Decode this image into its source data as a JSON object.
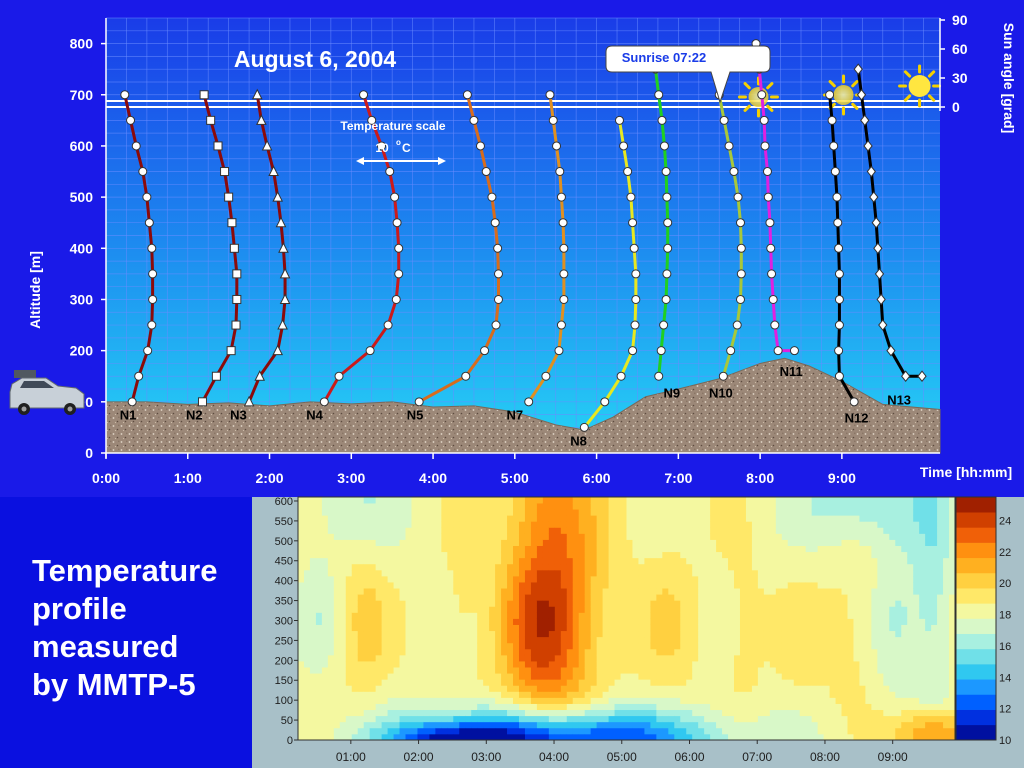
{
  "slide": {
    "caption_lines": [
      "Temperature",
      "profile",
      "measured",
      "by MMTP-5"
    ],
    "colors": {
      "background": "#0a10e0",
      "ground": "#a08a78",
      "sun": "#ffe640"
    }
  },
  "chart_data": [
    {
      "type": "line",
      "title": "August 6, 2004",
      "xlabel": "Time [hh:mm]",
      "ylabel": "Altitude [m]",
      "y2label": "Sun angle [grad]",
      "xlim": [
        0,
        10.2
      ],
      "ylim": [
        0,
        850
      ],
      "y2lim": [
        0,
        90
      ],
      "x_ticks": [
        "0:00",
        "1:00",
        "2:00",
        "3:00",
        "4:00",
        "5:00",
        "6:00",
        "7:00",
        "8:00",
        "9:00"
      ],
      "y_ticks": [
        "0",
        "100",
        "200",
        "300",
        "400",
        "500",
        "600",
        "700",
        "800"
      ],
      "y2_ticks": [
        "0",
        "30",
        "60",
        "90"
      ],
      "grid": true,
      "annotations": {
        "sunrise": "Sunrise 07:22",
        "temperature_scale_line1": "Temperature scale",
        "temperature_scale_value": "10",
        "temperature_scale_unit": "C"
      },
      "sun_positions_hours": [
        7.98,
        9.02,
        9.95
      ],
      "ground_profile": [
        [
          0.0,
          100
        ],
        [
          0.5,
          100
        ],
        [
          1.0,
          95
        ],
        [
          1.5,
          98
        ],
        [
          2.0,
          92
        ],
        [
          2.5,
          100
        ],
        [
          3.0,
          96
        ],
        [
          3.5,
          100
        ],
        [
          4.0,
          90
        ],
        [
          4.5,
          92
        ],
        [
          5.0,
          80
        ],
        [
          5.5,
          55
        ],
        [
          5.85,
          45
        ],
        [
          6.2,
          70
        ],
        [
          6.6,
          110
        ],
        [
          7.0,
          125
        ],
        [
          7.5,
          145
        ],
        [
          8.0,
          175
        ],
        [
          8.3,
          185
        ],
        [
          8.6,
          170
        ],
        [
          9.0,
          140
        ],
        [
          9.5,
          95
        ],
        [
          10.2,
          85
        ]
      ],
      "series": [
        {
          "name": "N1",
          "color": "#8b0a0a",
          "marker": "circle",
          "label_pos": [
            0.27,
            65
          ],
          "points": [
            [
              0.23,
              700
            ],
            [
              0.3,
              650
            ],
            [
              0.37,
              600
            ],
            [
              0.45,
              550
            ],
            [
              0.5,
              500
            ],
            [
              0.53,
              450
            ],
            [
              0.56,
              400
            ],
            [
              0.57,
              350
            ],
            [
              0.57,
              300
            ],
            [
              0.56,
              250
            ],
            [
              0.51,
              200
            ],
            [
              0.4,
              150
            ],
            [
              0.32,
              100
            ]
          ]
        },
        {
          "name": "N2",
          "color": "#8b0a0a",
          "marker": "square",
          "label_pos": [
            1.08,
            65
          ],
          "points": [
            [
              1.2,
              700
            ],
            [
              1.28,
              650
            ],
            [
              1.37,
              600
            ],
            [
              1.45,
              550
            ],
            [
              1.5,
              500
            ],
            [
              1.54,
              450
            ],
            [
              1.57,
              400
            ],
            [
              1.6,
              350
            ],
            [
              1.6,
              300
            ],
            [
              1.59,
              250
            ],
            [
              1.53,
              200
            ],
            [
              1.35,
              150
            ],
            [
              1.18,
              100
            ]
          ]
        },
        {
          "name": "N3",
          "color": "#8b0a0a",
          "marker": "triangle",
          "label_pos": [
            1.62,
            65
          ],
          "points": [
            [
              1.85,
              700
            ],
            [
              1.9,
              650
            ],
            [
              1.97,
              600
            ],
            [
              2.05,
              550
            ],
            [
              2.1,
              500
            ],
            [
              2.14,
              450
            ],
            [
              2.17,
              400
            ],
            [
              2.19,
              350
            ],
            [
              2.19,
              300
            ],
            [
              2.16,
              250
            ],
            [
              2.1,
              200
            ],
            [
              1.88,
              150
            ],
            [
              1.75,
              100
            ]
          ]
        },
        {
          "name": "N4",
          "color": "#cc1a1a",
          "marker": "circle",
          "label_pos": [
            2.55,
            65
          ],
          "points": [
            [
              3.15,
              700
            ],
            [
              3.25,
              650
            ],
            [
              3.37,
              600
            ],
            [
              3.47,
              550
            ],
            [
              3.53,
              500
            ],
            [
              3.56,
              450
            ],
            [
              3.58,
              400
            ],
            [
              3.58,
              350
            ],
            [
              3.55,
              300
            ],
            [
              3.45,
              250
            ],
            [
              3.23,
              200
            ],
            [
              2.85,
              150
            ],
            [
              2.67,
              100
            ]
          ]
        },
        {
          "name": "N5",
          "color": "#d86c1c",
          "marker": "circle",
          "label_pos": [
            3.78,
            65
          ],
          "points": [
            [
              4.42,
              700
            ],
            [
              4.5,
              650
            ],
            [
              4.58,
              600
            ],
            [
              4.65,
              550
            ],
            [
              4.72,
              500
            ],
            [
              4.76,
              450
            ],
            [
              4.79,
              400
            ],
            [
              4.8,
              350
            ],
            [
              4.8,
              300
            ],
            [
              4.77,
              250
            ],
            [
              4.63,
              200
            ],
            [
              4.4,
              150
            ],
            [
              3.83,
              100
            ]
          ]
        },
        {
          "name": "N7",
          "color": "#e09020",
          "marker": "circle",
          "label_pos": [
            5.0,
            65
          ],
          "points": [
            [
              5.43,
              700
            ],
            [
              5.47,
              650
            ],
            [
              5.51,
              600
            ],
            [
              5.55,
              550
            ],
            [
              5.57,
              500
            ],
            [
              5.59,
              450
            ],
            [
              5.6,
              400
            ],
            [
              5.6,
              350
            ],
            [
              5.6,
              300
            ],
            [
              5.57,
              250
            ],
            [
              5.54,
              200
            ],
            [
              5.38,
              150
            ],
            [
              5.17,
              100
            ]
          ]
        },
        {
          "name": "N8",
          "color": "#e8e820",
          "marker": "circle",
          "label_pos": [
            5.78,
            15
          ],
          "points": [
            [
              6.28,
              650
            ],
            [
              6.33,
              600
            ],
            [
              6.38,
              550
            ],
            [
              6.42,
              500
            ],
            [
              6.44,
              450
            ],
            [
              6.46,
              400
            ],
            [
              6.48,
              350
            ],
            [
              6.48,
              300
            ],
            [
              6.47,
              250
            ],
            [
              6.44,
              200
            ],
            [
              6.3,
              150
            ],
            [
              6.1,
              100
            ],
            [
              5.85,
              50
            ]
          ]
        },
        {
          "name": "N9",
          "color": "#20d020",
          "marker": "circle",
          "label_pos": [
            6.92,
            108
          ],
          "points": [
            [
              6.72,
              750
            ],
            [
              6.76,
              700
            ],
            [
              6.8,
              650
            ],
            [
              6.83,
              600
            ],
            [
              6.85,
              550
            ],
            [
              6.86,
              500
            ],
            [
              6.87,
              450
            ],
            [
              6.87,
              400
            ],
            [
              6.86,
              350
            ],
            [
              6.85,
              300
            ],
            [
              6.82,
              250
            ],
            [
              6.79,
              200
            ],
            [
              6.76,
              150
            ]
          ]
        },
        {
          "name": "N10",
          "color": "#a8c83a",
          "marker": "circle",
          "label_pos": [
            7.52,
            108
          ],
          "points": [
            [
              7.45,
              750
            ],
            [
              7.5,
              700
            ],
            [
              7.56,
              650
            ],
            [
              7.62,
              600
            ],
            [
              7.68,
              550
            ],
            [
              7.73,
              500
            ],
            [
              7.76,
              450
            ],
            [
              7.77,
              400
            ],
            [
              7.77,
              350
            ],
            [
              7.76,
              300
            ],
            [
              7.72,
              250
            ],
            [
              7.64,
              200
            ],
            [
              7.55,
              150
            ]
          ]
        },
        {
          "name": "N11",
          "color": "#e020e0",
          "marker": "circle",
          "label_pos": [
            8.38,
            150
          ],
          "points": [
            [
              7.95,
              800
            ],
            [
              7.99,
              750
            ],
            [
              8.02,
              700
            ],
            [
              8.05,
              650
            ],
            [
              8.06,
              600
            ],
            [
              8.09,
              550
            ],
            [
              8.1,
              500
            ],
            [
              8.12,
              450
            ],
            [
              8.13,
              400
            ],
            [
              8.14,
              350
            ],
            [
              8.16,
              300
            ],
            [
              8.18,
              250
            ],
            [
              8.22,
              200
            ],
            [
              8.42,
              200
            ]
          ]
        },
        {
          "name": "N12",
          "color": "#000000",
          "marker": "circle",
          "label_pos": [
            9.18,
            60
          ],
          "points": [
            [
              8.85,
              700
            ],
            [
              8.88,
              650
            ],
            [
              8.9,
              600
            ],
            [
              8.92,
              550
            ],
            [
              8.94,
              500
            ],
            [
              8.95,
              450
            ],
            [
              8.96,
              400
            ],
            [
              8.97,
              350
            ],
            [
              8.97,
              300
            ],
            [
              8.97,
              250
            ],
            [
              8.96,
              200
            ],
            [
              8.97,
              150
            ],
            [
              9.15,
              100
            ]
          ]
        },
        {
          "name": "N13",
          "color": "#000000",
          "marker": "diamond",
          "label_pos": [
            9.7,
            95
          ],
          "points": [
            [
              9.2,
              750
            ],
            [
              9.24,
              700
            ],
            [
              9.28,
              650
            ],
            [
              9.32,
              600
            ],
            [
              9.36,
              550
            ],
            [
              9.39,
              500
            ],
            [
              9.42,
              450
            ],
            [
              9.44,
              400
            ],
            [
              9.46,
              350
            ],
            [
              9.48,
              300
            ],
            [
              9.5,
              250
            ],
            [
              9.6,
              200
            ],
            [
              9.78,
              150
            ],
            [
              9.98,
              150
            ]
          ]
        }
      ]
    },
    {
      "type": "heatmap",
      "title": "",
      "xlabel": "",
      "ylabel": "",
      "x_ticks": [
        "01:00",
        "02:00",
        "03:00",
        "04:00",
        "05:00",
        "06:00",
        "07:00",
        "08:00",
        "09:00"
      ],
      "y_ticks": [
        "0",
        "50",
        "100",
        "150",
        "200",
        "250",
        "300",
        "350",
        "400",
        "450",
        "500",
        "550",
        "600"
      ],
      "colorbar_ticks": [
        "10",
        "12",
        "14",
        "16",
        "18",
        "20",
        "22",
        "24"
      ],
      "colorbar_colors": [
        "#0010a0",
        "#0030e0",
        "#0060ff",
        "#1c98ff",
        "#30c8f0",
        "#70e0e8",
        "#a8f0e0",
        "#d8f8c8",
        "#f4f8a0",
        "#ffe868",
        "#ffd040",
        "#ffb020",
        "#ff9010",
        "#f06008",
        "#d04000",
        "#a02000"
      ],
      "xlim": [
        0.22,
        9.92
      ],
      "ylim": [
        0,
        610
      ],
      "vlim": [
        10,
        25.5
      ],
      "cells": [
        {
          "x": 0.5,
          "y": 320,
          "sx": 0.2,
          "sy": 110,
          "a": -1
        },
        {
          "x": 1.2,
          "y": 300,
          "sx": 0.25,
          "sy": 140,
          "a": 1.6
        },
        {
          "x": 2.6,
          "y": 310,
          "sx": 0.18,
          "sy": 120,
          "a": 0.8
        },
        {
          "x": 3.85,
          "y": 300,
          "sx": 0.45,
          "sy": 200,
          "a": 5.2
        },
        {
          "x": 4.3,
          "y": 380,
          "sx": 0.5,
          "sy": 220,
          "a": 1.5
        },
        {
          "x": 5.7,
          "y": 300,
          "sx": 0.3,
          "sy": 150,
          "a": 1.2
        },
        {
          "x": 6.8,
          "y": 280,
          "sx": 0.25,
          "sy": 130,
          "a": 1.0
        },
        {
          "x": 7.6,
          "y": 250,
          "sx": 0.22,
          "sy": 110,
          "a": 0.6
        },
        {
          "x": 8.3,
          "y": 250,
          "sx": 0.3,
          "sy": 120,
          "a": 1.0
        },
        {
          "x": 9.1,
          "y": 300,
          "sx": 0.25,
          "sy": 150,
          "a": -1.5
        },
        {
          "x": 9.6,
          "y": 350,
          "sx": 0.2,
          "sy": 200,
          "a": -2.0
        },
        {
          "x": 4.0,
          "y": 0,
          "sx": 1.6,
          "sy": 55,
          "a": -8
        },
        {
          "x": 2.5,
          "y": 0,
          "sx": 0.6,
          "sy": 30,
          "a": -4
        },
        {
          "x": 9.6,
          "y": 20,
          "sx": 0.4,
          "sy": 40,
          "a": 4
        },
        {
          "x": 8.7,
          "y": 600,
          "sx": 0.7,
          "sy": 80,
          "a": -2.5
        },
        {
          "x": 3.9,
          "y": 600,
          "sx": 0.4,
          "sy": 70,
          "a": 1.5
        },
        {
          "x": 1.0,
          "y": 600,
          "sx": 0.5,
          "sy": 100,
          "a": -1.5
        }
      ],
      "base_value": 18.3
    }
  ]
}
